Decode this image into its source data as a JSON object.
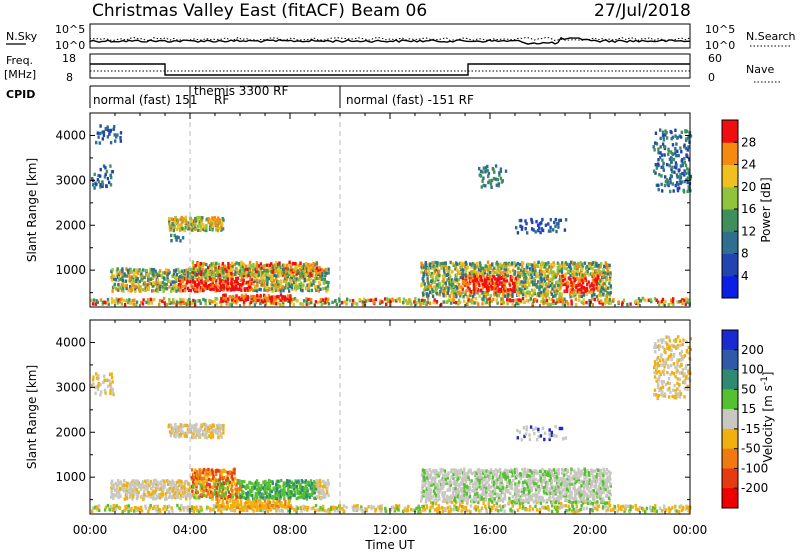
{
  "header": {
    "title": "Christmas Valley East (fitACF)",
    "beam": "Beam 06",
    "date": "27/Jul/2018"
  },
  "top_panels": {
    "nsky_label": "N.Sky",
    "nsky_ticks": [
      "10^5",
      "10^0"
    ],
    "nsearch_label": "N.Search",
    "nsearch_ticks": [
      "10^5",
      "10^0"
    ],
    "freq_label": "Freq.",
    "freq_unit": "[MHz]",
    "freq_ticks": [
      "18",
      "8"
    ],
    "nave_label": "Nave",
    "nave_ticks": [
      "60",
      "0"
    ],
    "cpid_label": "CPID",
    "cpid_segments": [
      {
        "label": "normal (fast) 151",
        "start_h": 0,
        "end_h": 4
      },
      {
        "label": "themis 3300 RF",
        "start_h": 4,
        "end_h": 10
      },
      {
        "label": "RF",
        "start_h": 4,
        "end_h": 10
      },
      {
        "label": "normal (fast) -151 RF",
        "start_h": 10,
        "end_h": 24
      }
    ]
  },
  "chart_data": [
    {
      "type": "heatmap",
      "panel": "power",
      "ylabel": "Slant Range [km]",
      "ylim": [
        180,
        4500
      ],
      "yticks": [
        1000,
        2000,
        3000,
        4000
      ],
      "xlim": [
        0,
        24
      ],
      "colorbar_label": "Power [dB]",
      "colorbar_ticks": [
        "4",
        "8",
        "12",
        "16",
        "20",
        "24",
        "28"
      ],
      "colors": [
        "#0a1ee8",
        "#2244b0",
        "#2e6f90",
        "#3f8f5c",
        "#8fc43c",
        "#f0c020",
        "#f58a10",
        "#ee1010"
      ],
      "vlines_h": [
        4,
        10
      ]
    },
    {
      "type": "heatmap",
      "panel": "velocity",
      "ylabel": "Slant Range [km]",
      "ylim": [
        180,
        4500
      ],
      "yticks": [
        1000,
        2000,
        3000,
        4000
      ],
      "xlim": [
        0,
        24
      ],
      "xticks": [
        "00:00",
        "04:00",
        "08:00",
        "12:00",
        "16:00",
        "20:00",
        "00:00"
      ],
      "xlabel": "Time UT",
      "colorbar_label": "Velocity [m s^-1]",
      "colorbar_ticks": [
        "200",
        "100",
        "50",
        "15",
        "-15",
        "-50",
        "-100",
        "-200"
      ],
      "colors": [
        "#1a2ad0",
        "#2e5aa8",
        "#2e8a70",
        "#55c030",
        "#c8c8c0",
        "#f0b010",
        "#f07a10",
        "#e83a10",
        "#ee0000"
      ],
      "vlines_h": [
        4,
        10
      ]
    }
  ]
}
